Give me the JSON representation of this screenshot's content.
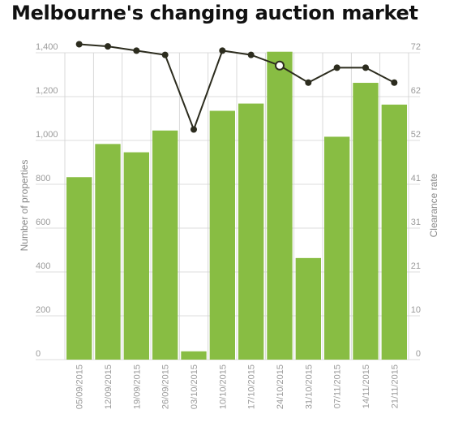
{
  "title": "Melbourne's changing auction market",
  "chart_data": {
    "type": "bar",
    "title": "Melbourne's changing auction market",
    "categories": [
      "05/09/2015",
      "12/09/2015",
      "19/09/2015",
      "26/09/2015",
      "03/10/2015",
      "10/10/2015",
      "17/10/2015",
      "24/10/2015",
      "31/10/2015",
      "07/11/2015",
      "14/11/2015",
      "21/11/2015"
    ],
    "series": [
      {
        "type": "bar",
        "axis": "left",
        "values": [
          880,
          1040,
          1000,
          1105,
          40,
          1200,
          1235,
          1485,
          490,
          1075,
          1335,
          1230
        ]
      },
      {
        "type": "line",
        "axis": "right",
        "values": [
          74,
          73.5,
          72.5,
          71.5,
          54,
          72.5,
          71.5,
          69,
          65,
          68.5,
          68.5,
          65
        ]
      }
    ],
    "ylabel": "Number of properties",
    "y2label": "Clearance rate",
    "ylim": [
      0,
      1480
    ],
    "y2lim": [
      0,
      72
    ],
    "yticks": [
      "0",
      "200",
      "400",
      "600",
      "800",
      "1,000",
      "1,200",
      "1,400"
    ],
    "y2ticks": [
      "0",
      "10",
      "21",
      "31",
      "41",
      "52",
      "62",
      "72"
    ],
    "grid": true,
    "colors": {
      "bar": "#88bd43",
      "line": "#2c2c1e",
      "grid": "#d0d0d0",
      "highlight_point": "#ffffff"
    }
  }
}
